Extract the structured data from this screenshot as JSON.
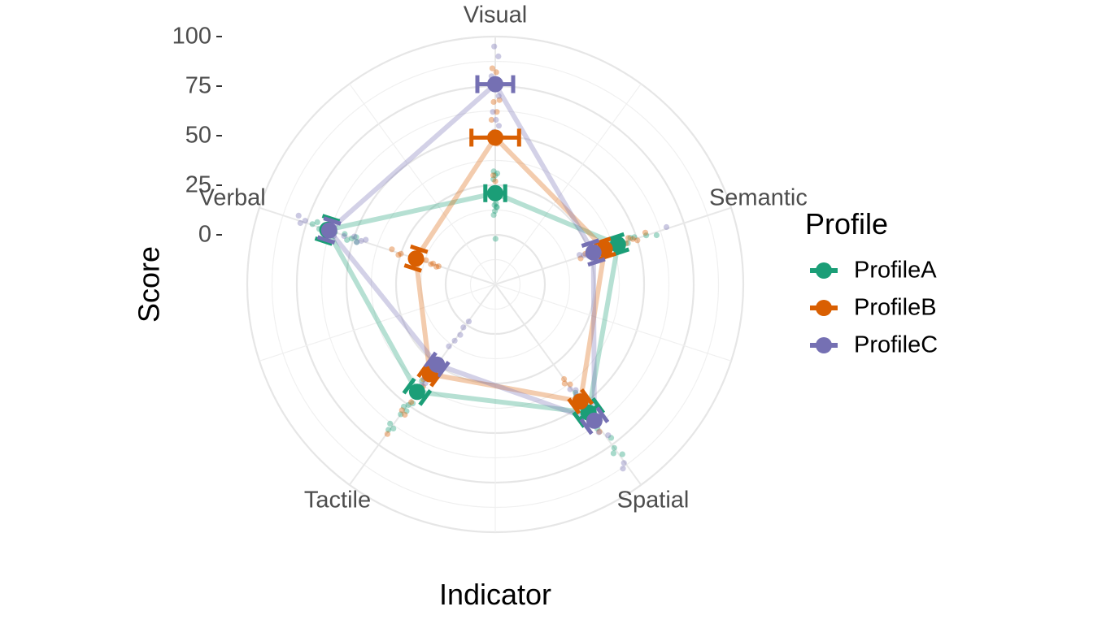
{
  "chart_data": {
    "type": "radar",
    "xlabel": "Indicator",
    "ylabel": "Score",
    "categories": [
      "Visual",
      "Semantic",
      "Spatial",
      "Tactile",
      "Verbal"
    ],
    "rlim": [
      -25,
      100
    ],
    "r_ticks": [
      0,
      25,
      50,
      75,
      100
    ],
    "r_tick_labels": [
      "0",
      "25",
      "50",
      "75",
      "100"
    ],
    "grid": true,
    "legend": {
      "title": "Profile",
      "placement": "right"
    },
    "series": [
      {
        "name": "ProfileA",
        "color": "#1b9e77",
        "means": [
          21,
          40,
          55,
          42,
          64
        ],
        "errors": [
          5,
          4,
          6,
          5,
          6
        ],
        "points": [
          [
            10,
            12,
            14,
            28,
            30,
            31,
            32,
            -2,
            14,
            15,
            16
          ],
          [
            31,
            33,
            36,
            45,
            47,
            55,
            60,
            49,
            41,
            39
          ],
          [
            43,
            45,
            48,
            60,
            64,
            72,
            77,
            79,
            82,
            46
          ],
          [
            36,
            39,
            40,
            48,
            50,
            52,
            53,
            56,
            63,
            64,
            66
          ],
          [
            72,
            70,
            68,
            55,
            53,
            51,
            49,
            48,
            60,
            62
          ]
        ]
      },
      {
        "name": "ProfileB",
        "color": "#d95f02",
        "means": [
          49,
          33,
          48,
          31,
          17
        ],
        "errors": [
          12,
          4,
          4,
          4,
          5
        ],
        "points": [
          [
            84,
            82,
            68,
            67,
            62,
            58,
            50,
            46,
            30,
            27
          ],
          [
            20,
            23,
            26,
            30,
            38,
            44,
            46,
            48,
            50,
            55
          ],
          [
            34,
            36,
            38,
            45,
            48,
            55,
            58,
            60,
            62,
            66
          ],
          [
            28,
            32,
            35,
            38,
            40,
            42,
            48,
            54,
            55,
            68
          ],
          [
            30,
            26,
            25,
            18,
            16,
            14,
            12,
            9,
            8,
            6,
            5
          ]
        ]
      },
      {
        "name": "ProfileC",
        "color": "#7570b3",
        "means": [
          76,
          27,
          60,
          25,
          63
        ],
        "errors": [
          9,
          5,
          5,
          4,
          5
        ],
        "points": [
          [
            95,
            90,
            80,
            74,
            70,
            62,
            58,
            55,
            52
          ],
          [
            20,
            22,
            24,
            28,
            30,
            32,
            34,
            36,
            38,
            66
          ],
          [
            40,
            42,
            44,
            55,
            58,
            62,
            66,
            70,
            86,
            88
          ],
          [
            -2,
            2,
            6,
            10,
            14,
            28,
            32,
            34,
            36,
            38,
            40,
            42
          ],
          [
            80,
            78,
            76,
            60,
            55,
            50,
            48,
            46,
            44
          ]
        ]
      }
    ]
  }
}
